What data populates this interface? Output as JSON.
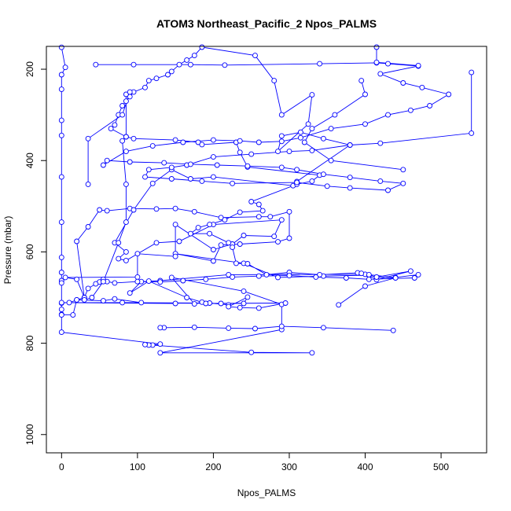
{
  "chart_data": {
    "type": "line",
    "title": "ATOM3 Northeast_Pacific_2 Npos_PALMS",
    "xlabel": "Npos_PALMS",
    "ylabel": "Pressure (mbar)",
    "xlim": [
      -20,
      560
    ],
    "ylim": [
      1040,
      150
    ],
    "y_reversed": true,
    "x_ticks": [
      0,
      100,
      200,
      300,
      400,
      500
    ],
    "y_ticks": [
      200,
      400,
      600,
      800,
      1000
    ],
    "grid": false,
    "color": "#0000ff",
    "series": [
      {
        "points": [
          [
            0,
            152
          ],
          [
            5,
            196
          ],
          [
            0,
            212
          ],
          [
            0,
            244
          ],
          [
            0,
            312
          ],
          [
            0,
            345
          ],
          [
            0,
            436
          ],
          [
            0,
            535
          ],
          [
            0,
            612
          ],
          [
            0,
            645
          ],
          [
            0,
            663
          ],
          [
            0,
            668
          ],
          [
            0,
            712
          ],
          [
            0,
            726
          ],
          [
            0,
            737
          ],
          [
            0,
            776
          ],
          [
            130,
            802
          ],
          [
            120,
            804
          ],
          [
            115,
            804
          ],
          [
            110,
            803
          ],
          [
            250,
            820
          ],
          [
            330,
            821
          ],
          [
            130,
            821
          ],
          [
            290,
            770
          ],
          [
            290,
            715
          ],
          [
            240,
            686
          ],
          [
            145,
            656
          ],
          [
            175,
            714
          ],
          [
            185,
            710
          ],
          [
            220,
            716
          ],
          [
            195,
            712
          ],
          [
            80,
            711
          ],
          [
            150,
            713
          ],
          [
            0,
            711
          ],
          [
            105,
            711
          ],
          [
            70,
            703
          ],
          [
            55,
            707
          ],
          [
            20,
            705
          ],
          [
            30,
            700
          ],
          [
            10,
            711
          ],
          [
            210,
            713
          ],
          [
            240,
            713
          ],
          [
            245,
            699
          ],
          [
            220,
            720
          ],
          [
            235,
            722
          ],
          [
            260,
            723
          ],
          [
            295,
            712
          ],
          [
            190,
            713
          ],
          [
            165,
            700
          ],
          [
            115,
            664
          ],
          [
            90,
            690
          ],
          [
            105,
            665
          ],
          [
            130,
            663
          ],
          [
            220,
            650
          ],
          [
            400,
            649
          ],
          [
            415,
            661
          ],
          [
            460,
            642
          ],
          [
            415,
            655
          ],
          [
            405,
            651
          ],
          [
            345,
            653
          ],
          [
            285,
            656
          ],
          [
            240,
            625
          ],
          [
            150,
            604
          ],
          [
            200,
            620
          ],
          [
            210,
            585
          ],
          [
            235,
            583
          ],
          [
            285,
            578
          ],
          [
            300,
            570
          ],
          [
            300,
            512
          ],
          [
            275,
            523
          ],
          [
            260,
            523
          ],
          [
            210,
            525
          ],
          [
            175,
            512
          ],
          [
            150,
            505
          ],
          [
            125,
            506
          ],
          [
            90,
            505
          ],
          [
            60,
            510
          ],
          [
            50,
            508
          ],
          [
            35,
            545
          ],
          [
            20,
            577
          ],
          [
            30,
            700
          ],
          [
            20,
            660
          ],
          [
            5,
            656
          ],
          [
            100,
            655
          ],
          [
            100,
            604
          ],
          [
            150,
            610
          ],
          [
            150,
            540
          ],
          [
            200,
            595
          ],
          [
            225,
            583
          ],
          [
            240,
            564
          ],
          [
            280,
            566
          ],
          [
            290,
            530
          ],
          [
            200,
            540
          ],
          [
            155,
            577
          ],
          [
            125,
            580
          ],
          [
            85,
            619
          ],
          [
            75,
            615
          ],
          [
            85,
            600
          ],
          [
            70,
            580
          ],
          [
            95,
            508
          ],
          [
            120,
            450
          ],
          [
            145,
            420
          ],
          [
            170,
            440
          ],
          [
            200,
            436
          ],
          [
            305,
            455
          ],
          [
            310,
            446
          ],
          [
            380,
            366
          ],
          [
            345,
            352
          ],
          [
            315,
            338
          ],
          [
            290,
            346
          ],
          [
            285,
            380
          ],
          [
            325,
            320
          ],
          [
            330,
            256
          ],
          [
            290,
            300
          ],
          [
            280,
            225
          ],
          [
            255,
            170
          ],
          [
            185,
            148
          ],
          [
            175,
            170
          ],
          [
            165,
            180
          ],
          [
            155,
            190
          ],
          [
            145,
            205
          ],
          [
            140,
            212
          ],
          [
            125,
            220
          ],
          [
            115,
            225
          ],
          [
            110,
            240
          ],
          [
            95,
            250
          ],
          [
            90,
            260
          ],
          [
            85,
            270
          ],
          [
            80,
            280
          ],
          [
            75,
            300
          ],
          [
            70,
            322
          ],
          [
            65,
            330
          ],
          [
            85,
            348
          ],
          [
            95,
            352
          ],
          [
            150,
            355
          ],
          [
            180,
            360
          ],
          [
            185,
            365
          ],
          [
            230,
            360
          ],
          [
            235,
            382
          ],
          [
            245,
            414
          ],
          [
            340,
            432
          ],
          [
            330,
            445
          ],
          [
            310,
            452
          ],
          [
            250,
            490
          ],
          [
            260,
            496
          ],
          [
            265,
            510
          ],
          [
            235,
            513
          ],
          [
            215,
            530
          ],
          [
            195,
            540
          ],
          [
            180,
            547
          ],
          [
            170,
            560
          ],
          [
            195,
            560
          ],
          [
            220,
            580
          ],
          [
            225,
            590
          ],
          [
            230,
            625
          ],
          [
            245,
            626
          ],
          [
            270,
            650
          ],
          [
            300,
            645
          ],
          [
            340,
            650
          ],
          [
            390,
            646
          ],
          [
            405,
            650
          ],
          [
            440,
            656
          ],
          [
            470,
            650
          ],
          [
            465,
            657
          ],
          [
            405,
            660
          ],
          [
            375,
            657
          ],
          [
            335,
            655
          ],
          [
            300,
            652
          ],
          [
            260,
            653
          ],
          [
            225,
            655
          ],
          [
            190,
            660
          ],
          [
            160,
            663
          ],
          [
            130,
            666
          ],
          [
            100,
            665
          ],
          [
            70,
            668
          ],
          [
            60,
            665
          ],
          [
            55,
            660
          ],
          [
            50,
            666
          ],
          [
            45,
            670
          ],
          [
            35,
            680
          ],
          [
            30,
            700
          ]
        ]
      },
      {
        "points": [
          [
            540,
            207
          ],
          [
            540,
            340
          ],
          [
            420,
            362
          ],
          [
            380,
            366
          ],
          [
            330,
            378
          ],
          [
            300,
            380
          ],
          [
            250,
            386
          ],
          [
            200,
            392
          ],
          [
            165,
            410
          ],
          [
            145,
            415
          ],
          [
            115,
            420
          ],
          [
            110,
            436
          ],
          [
            145,
            440
          ],
          [
            185,
            445
          ],
          [
            225,
            450
          ],
          [
            310,
            448
          ],
          [
            350,
            456
          ],
          [
            380,
            460
          ],
          [
            430,
            465
          ],
          [
            450,
            450
          ],
          [
            420,
            445
          ],
          [
            380,
            437
          ],
          [
            345,
            430
          ],
          [
            310,
            420
          ],
          [
            290,
            415
          ],
          [
            245,
            412
          ],
          [
            205,
            410
          ],
          [
            170,
            408
          ],
          [
            135,
            405
          ],
          [
            90,
            403
          ],
          [
            60,
            400
          ],
          [
            55,
            410
          ],
          [
            85,
            380
          ],
          [
            120,
            368
          ],
          [
            160,
            360
          ],
          [
            200,
            355
          ],
          [
            235,
            357
          ],
          [
            260,
            360
          ],
          [
            290,
            358
          ],
          [
            315,
            350
          ],
          [
            355,
            330
          ],
          [
            400,
            320
          ],
          [
            430,
            300
          ],
          [
            460,
            290
          ],
          [
            485,
            280
          ],
          [
            510,
            255
          ],
          [
            475,
            240
          ],
          [
            450,
            230
          ],
          [
            420,
            210
          ],
          [
            470,
            193
          ],
          [
            415,
            186
          ],
          [
            340,
            188
          ],
          [
            215,
            191
          ],
          [
            170,
            190
          ],
          [
            95,
            190
          ],
          [
            45,
            190
          ]
        ]
      },
      {
        "points": [
          [
            85,
            255
          ],
          [
            85,
            348
          ],
          [
            80,
            357
          ],
          [
            85,
            452
          ],
          [
            85,
            535
          ],
          [
            75,
            580
          ],
          [
            55,
            665
          ],
          [
            40,
            700
          ],
          [
            30,
            705
          ],
          [
            20,
            705
          ],
          [
            15,
            738
          ],
          [
            0,
            738
          ]
        ]
      },
      {
        "points": [
          [
            365,
            716
          ],
          [
            400,
            675
          ],
          [
            440,
            657
          ],
          [
            415,
            655
          ],
          [
            395,
            647
          ]
        ]
      },
      {
        "points": [
          [
            437,
            772
          ],
          [
            345,
            766
          ],
          [
            290,
            763
          ],
          [
            255,
            768
          ],
          [
            220,
            767
          ],
          [
            175,
            765
          ],
          [
            135,
            766
          ],
          [
            130,
            766
          ]
        ]
      },
      {
        "points": [
          [
            35,
            452
          ],
          [
            35,
            352
          ],
          [
            80,
            300
          ],
          [
            90,
            250
          ]
        ]
      },
      {
        "points": [
          [
            450,
            420
          ],
          [
            355,
            400
          ],
          [
            320,
            360
          ],
          [
            330,
            330
          ],
          [
            360,
            300
          ],
          [
            400,
            255
          ],
          [
            395,
            225
          ]
        ]
      },
      {
        "points": [
          [
            415,
            150
          ],
          [
            415,
            185
          ],
          [
            470,
            192
          ],
          [
            430,
            188
          ]
        ]
      }
    ]
  }
}
